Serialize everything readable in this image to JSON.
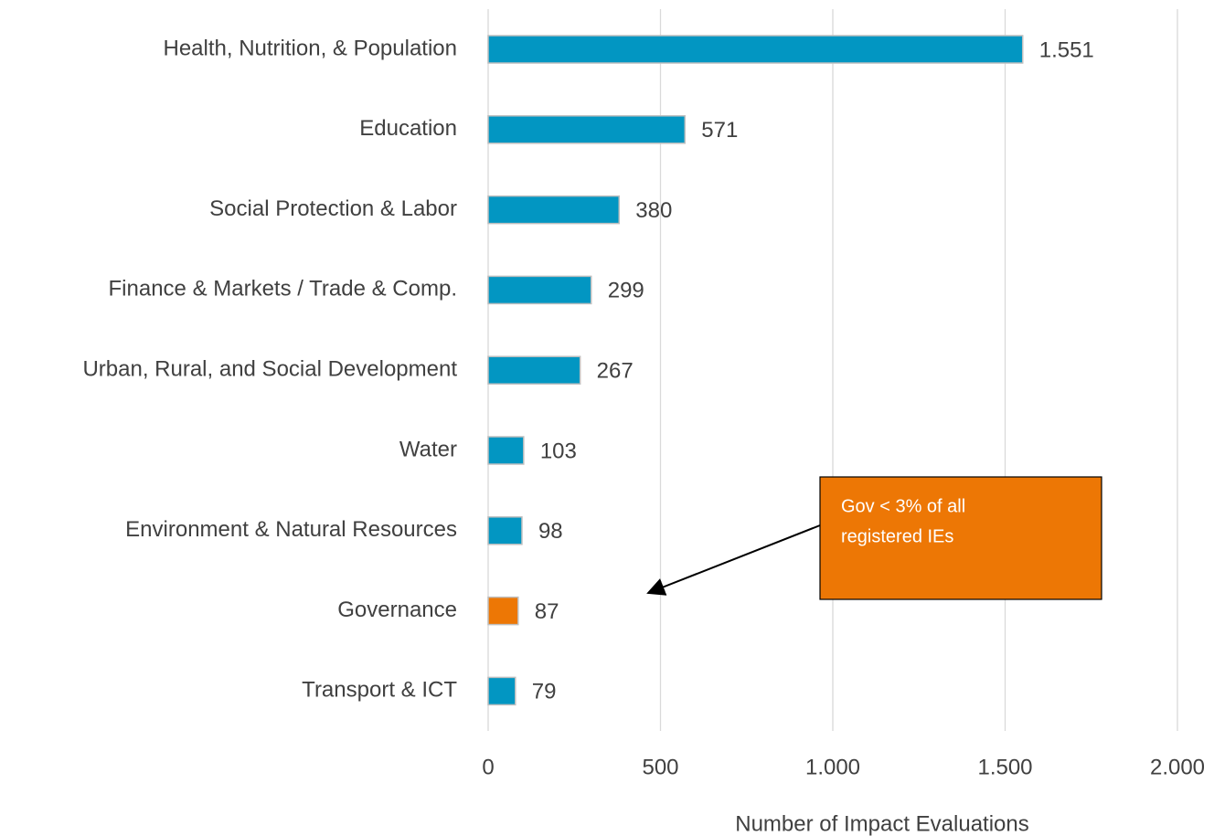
{
  "chart_data": {
    "type": "bar",
    "orientation": "horizontal",
    "categories": [
      "Health, Nutrition, & Population",
      "Education",
      "Social Protection & Labor",
      "Finance & Markets / Trade & Comp.",
      "Urban, Rural, and Social Development",
      "Water",
      "Environment & Natural Resources",
      "Governance",
      "Transport & ICT"
    ],
    "values": [
      1551,
      571,
      380,
      299,
      267,
      103,
      98,
      87,
      79
    ],
    "value_labels": [
      "1.551",
      "571",
      "380",
      "299",
      "267",
      "103",
      "98",
      "87",
      "79"
    ],
    "colors": [
      "#0296c2",
      "#0296c2",
      "#0296c2",
      "#0296c2",
      "#0296c2",
      "#0296c2",
      "#0296c2",
      "#ed7705",
      "#0296c2"
    ],
    "xlim": [
      0,
      2000
    ],
    "xticks": [
      0,
      500,
      {
        "value": 1000,
        "label": "1.000"
      },
      {
        "value": 1500,
        "label": "1.500"
      },
      {
        "value": 2000,
        "label": "2.000"
      }
    ],
    "xlabel": "Number of Impact Evaluations",
    "grid": true,
    "annotation": {
      "lines": [
        "Gov < 3% of all",
        "registered IEs"
      ],
      "color": "#ed7705"
    }
  }
}
